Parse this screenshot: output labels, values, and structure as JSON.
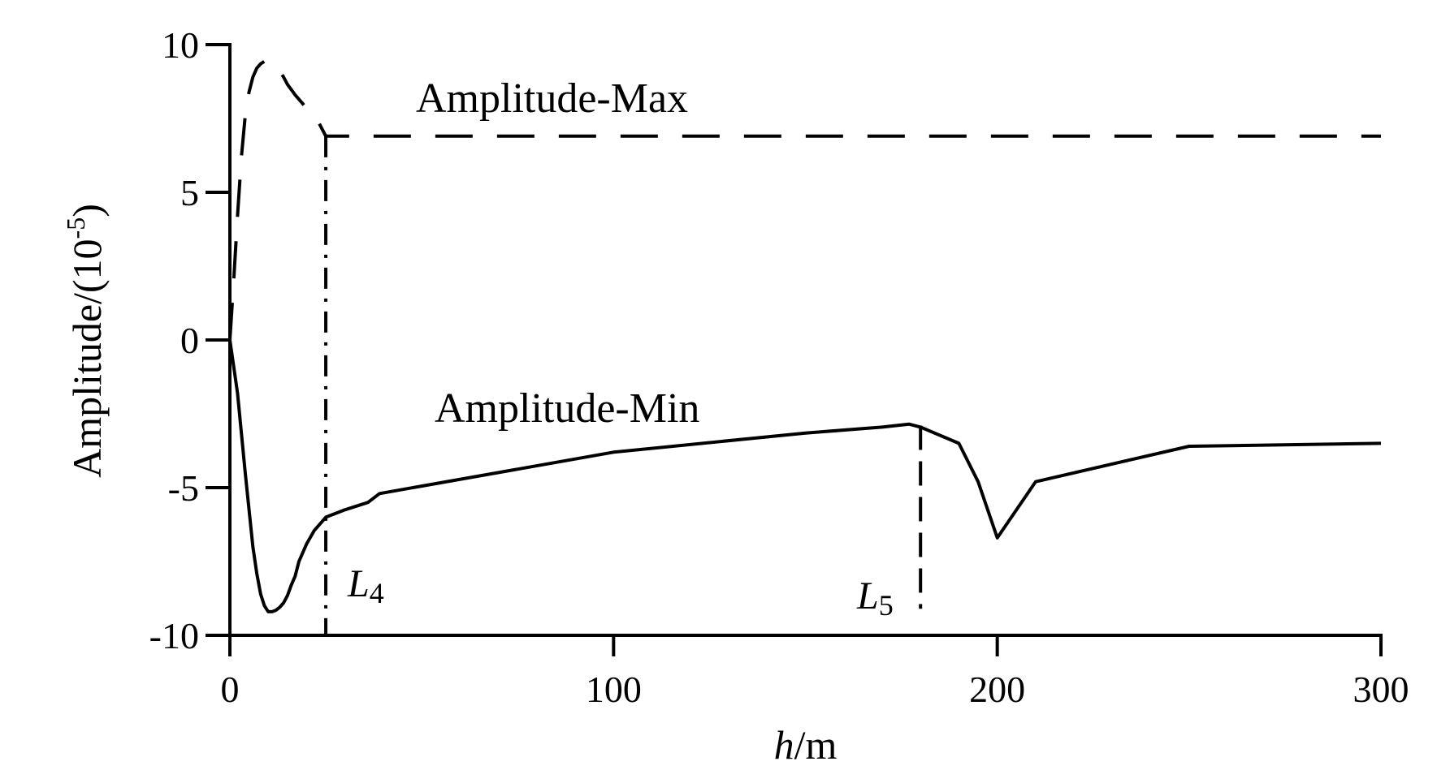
{
  "chart_data": {
    "type": "line",
    "xlabel": {
      "var": "h",
      "unit": "/m"
    },
    "ylabel": {
      "main": "Amplitude/(10",
      "exp": "-5",
      "close": ")"
    },
    "xlim": [
      0,
      300
    ],
    "ylim": [
      -10,
      10
    ],
    "xticks": [
      0,
      100,
      200,
      300
    ],
    "yticks": [
      10,
      5,
      0,
      -5,
      -10
    ],
    "grid": false,
    "series": [
      {
        "name": "Amplitude-Max",
        "style": "dashed",
        "points": [
          [
            0,
            0
          ],
          [
            1,
            2.0
          ],
          [
            2,
            4.2
          ],
          [
            3,
            6.2
          ],
          [
            4,
            7.6
          ],
          [
            5,
            8.4
          ],
          [
            6,
            8.9
          ],
          [
            7,
            9.2
          ],
          [
            8,
            9.35
          ],
          [
            9,
            9.43
          ],
          [
            10,
            9.45
          ],
          [
            11,
            9.4
          ],
          [
            12,
            9.28
          ],
          [
            13,
            9.1
          ],
          [
            14,
            8.9
          ],
          [
            15,
            8.65
          ],
          [
            17,
            8.3
          ],
          [
            19,
            8.0
          ],
          [
            21,
            7.7
          ],
          [
            23,
            7.4
          ],
          [
            25,
            6.9
          ],
          [
            300,
            6.9
          ]
        ]
      },
      {
        "name": "Amplitude-Min",
        "style": "solid",
        "points": [
          [
            0,
            0
          ],
          [
            2,
            -1.8
          ],
          [
            4,
            -4.5
          ],
          [
            6,
            -7.0
          ],
          [
            7,
            -7.9
          ],
          [
            8,
            -8.6
          ],
          [
            9,
            -9.0
          ],
          [
            10,
            -9.2
          ],
          [
            11,
            -9.2
          ],
          [
            12,
            -9.15
          ],
          [
            13,
            -9.05
          ],
          [
            14,
            -8.9
          ],
          [
            15,
            -8.65
          ],
          [
            16,
            -8.3
          ],
          [
            17,
            -8.0
          ],
          [
            18,
            -7.5
          ],
          [
            20,
            -6.9
          ],
          [
            22,
            -6.45
          ],
          [
            24,
            -6.15
          ],
          [
            25,
            -6.0
          ],
          [
            30,
            -5.75
          ],
          [
            36,
            -5.5
          ],
          [
            39,
            -5.2
          ],
          [
            100,
            -3.8
          ],
          [
            150,
            -3.15
          ],
          [
            170,
            -2.95
          ],
          [
            177,
            -2.85
          ],
          [
            180,
            -2.95
          ],
          [
            190,
            -3.5
          ],
          [
            195,
            -4.8
          ],
          [
            200,
            -6.7
          ],
          [
            210,
            -4.8
          ],
          [
            250,
            -3.6
          ],
          [
            300,
            -3.5
          ]
        ]
      }
    ],
    "markers": [
      {
        "name": "L",
        "sub": "4",
        "x": 25,
        "y_from": 6.9,
        "y_to": -10,
        "style": "dash-dot"
      },
      {
        "name": "L",
        "sub": "5",
        "x": 180,
        "y_from": -2.9,
        "y_to": -9.1,
        "style": "dashed"
      }
    ]
  }
}
